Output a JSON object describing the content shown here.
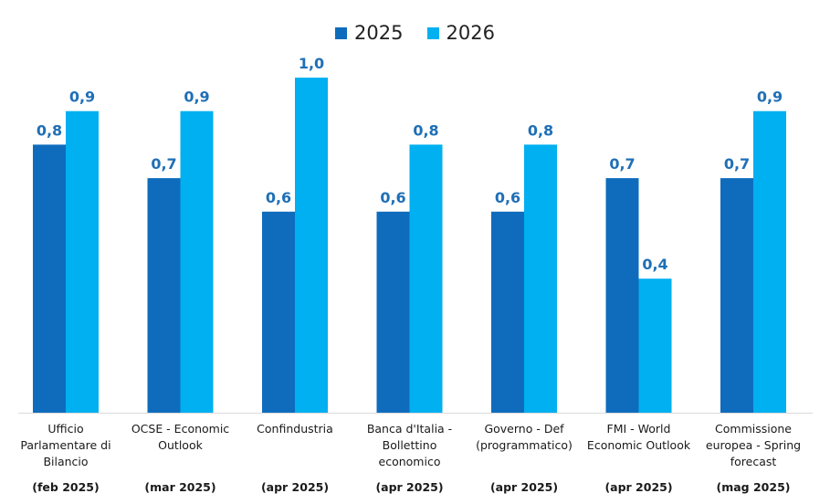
{
  "chart_data": {
    "type": "bar",
    "categories": [
      {
        "lines": [
          "Ufficio",
          "Parlamentare di",
          "Bilancio"
        ],
        "date": "(feb 2025)"
      },
      {
        "lines": [
          "OCSE - Economic",
          "Outlook"
        ],
        "date": "(mar 2025)"
      },
      {
        "lines": [
          "Confindustria"
        ],
        "date": "(apr 2025)"
      },
      {
        "lines": [
          "Banca d'Italia -",
          "Bollettino",
          "economico"
        ],
        "date": "(apr 2025)"
      },
      {
        "lines": [
          "Governo - Def",
          "(programmatico)"
        ],
        "date": "(apr 2025)"
      },
      {
        "lines": [
          "FMI - World",
          "Economic Outlook"
        ],
        "date": "(apr 2025)"
      },
      {
        "lines": [
          "Commissione",
          "europea - Spring",
          "forecast"
        ],
        "date": "(mag 2025)"
      }
    ],
    "series": [
      {
        "name": "2025",
        "color": "#0F6CBD",
        "values": [
          0.8,
          0.7,
          0.6,
          0.6,
          0.6,
          0.7,
          0.7
        ],
        "labels": [
          "0,8",
          "0,7",
          "0,6",
          "0,6",
          "0,6",
          "0,7",
          "0,7"
        ]
      },
      {
        "name": "2026",
        "color": "#00B0F0",
        "values": [
          0.9,
          0.9,
          1.0,
          0.8,
          0.8,
          0.4,
          0.9
        ],
        "labels": [
          "0,9",
          "0,9",
          "1,0",
          "0,8",
          "0,8",
          "0,4",
          "0,9"
        ]
      }
    ],
    "ylim": [
      0,
      1.0
    ],
    "grid": false,
    "legend_position": "top-center",
    "title": "",
    "xlabel": "",
    "ylabel": ""
  }
}
